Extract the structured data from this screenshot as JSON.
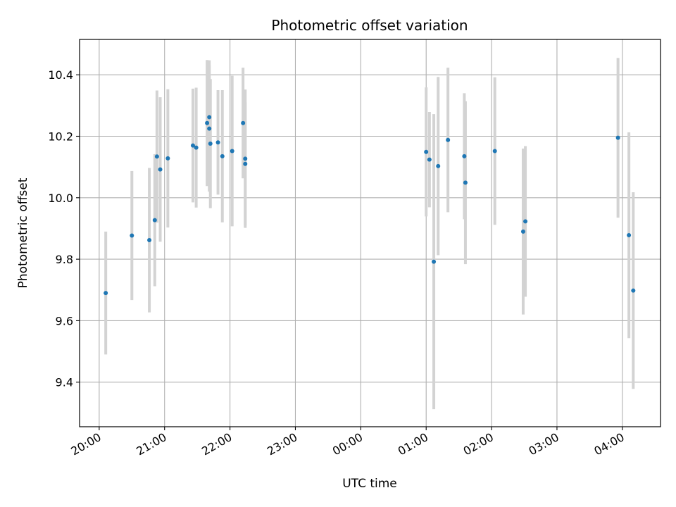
{
  "chart_data": {
    "type": "scatter",
    "title": "Photometric offset variation",
    "xlabel": "UTC time",
    "ylabel": "Photometric offset",
    "grid": true,
    "x_ticks": [
      "20:00",
      "21:00",
      "22:00",
      "23:00",
      "00:00",
      "01:00",
      "02:00",
      "03:00",
      "04:00"
    ],
    "y_ticks": [
      "9.4",
      "9.6",
      "9.8",
      "10.0",
      "10.2",
      "10.4"
    ],
    "xlim": [
      "19:42",
      "04:35"
    ],
    "ylim": [
      9.255,
      10.515
    ],
    "colors": {
      "point": "#1f77b4",
      "errorbar": "#d3d3d3"
    },
    "points": [
      {
        "x": "20:06",
        "y": 9.69,
        "err": 0.2
      },
      {
        "x": "20:30",
        "y": 9.877,
        "err": 0.21
      },
      {
        "x": "20:46",
        "y": 9.862,
        "err": 0.235
      },
      {
        "x": "20:51",
        "y": 9.927,
        "err": 0.215
      },
      {
        "x": "20:53",
        "y": 10.134,
        "err": 0.215
      },
      {
        "x": "20:56",
        "y": 10.092,
        "err": 0.235
      },
      {
        "x": "21:03",
        "y": 10.128,
        "err": 0.225
      },
      {
        "x": "21:26",
        "y": 10.17,
        "err": 0.185
      },
      {
        "x": "21:29",
        "y": 10.163,
        "err": 0.195
      },
      {
        "x": "21:39",
        "y": 10.243,
        "err": 0.205
      },
      {
        "x": "21:41",
        "y": 10.262,
        "err": 0.185
      },
      {
        "x": "21:41",
        "y": 10.225,
        "err": 0.205
      },
      {
        "x": "21:42",
        "y": 10.176,
        "err": 0.21
      },
      {
        "x": "21:49",
        "y": 10.18,
        "err": 0.17
      },
      {
        "x": "21:53",
        "y": 10.135,
        "err": 0.215
      },
      {
        "x": "22:02",
        "y": 10.152,
        "err": 0.245
      },
      {
        "x": "22:12",
        "y": 10.243,
        "err": 0.18
      },
      {
        "x": "22:14",
        "y": 10.11,
        "err": 0.2
      },
      {
        "x": "22:14",
        "y": 10.127,
        "err": 0.225
      },
      {
        "x": "01:00",
        "y": 10.149,
        "err": 0.21
      },
      {
        "x": "01:03",
        "y": 10.124,
        "err": 0.155
      },
      {
        "x": "01:07",
        "y": 9.792,
        "err": 0.48
      },
      {
        "x": "01:11",
        "y": 10.103,
        "err": 0.29
      },
      {
        "x": "01:20",
        "y": 10.188,
        "err": 0.235
      },
      {
        "x": "01:35",
        "y": 10.135,
        "err": 0.205
      },
      {
        "x": "01:36",
        "y": 10.049,
        "err": 0.265
      },
      {
        "x": "02:03",
        "y": 10.152,
        "err": 0.24
      },
      {
        "x": "02:29",
        "y": 9.89,
        "err": 0.27
      },
      {
        "x": "02:31",
        "y": 9.923,
        "err": 0.245
      },
      {
        "x": "03:56",
        "y": 10.195,
        "err": 0.26
      },
      {
        "x": "04:06",
        "y": 9.878,
        "err": 0.335
      },
      {
        "x": "04:10",
        "y": 9.698,
        "err": 0.32
      }
    ]
  }
}
